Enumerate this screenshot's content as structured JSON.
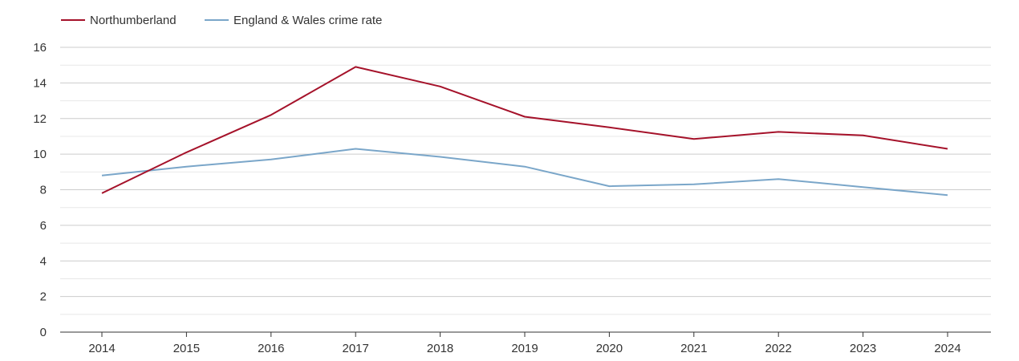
{
  "chart_data": {
    "type": "line",
    "title": "",
    "xlabel": "",
    "ylabel": "",
    "x": [
      "2014",
      "2015",
      "2016",
      "2017",
      "2018",
      "2019",
      "2020",
      "2021",
      "2022",
      "2023",
      "2024"
    ],
    "ylim": [
      0,
      16
    ],
    "y_ticks": [
      0,
      2,
      4,
      6,
      8,
      10,
      12,
      14,
      16
    ],
    "grid": true,
    "legend_position": "top-left",
    "series": [
      {
        "name": "Northumberland",
        "color": "#a5122a",
        "values": [
          7.8,
          10.1,
          12.2,
          14.9,
          13.8,
          12.1,
          11.5,
          10.85,
          11.25,
          11.05,
          10.3
        ]
      },
      {
        "name": "England & Wales crime rate",
        "color": "#7aa6c9",
        "values": [
          8.8,
          9.3,
          9.7,
          10.3,
          9.85,
          9.3,
          8.2,
          8.3,
          8.6,
          8.15,
          7.7
        ]
      }
    ]
  }
}
